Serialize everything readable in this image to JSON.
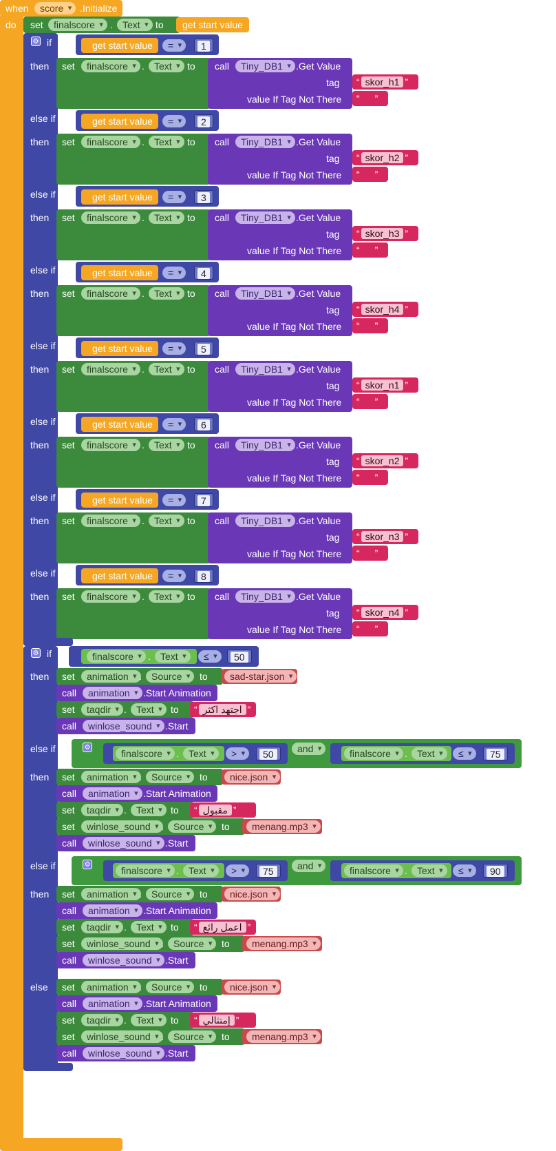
{
  "event": {
    "when": "when",
    "component": "score",
    "event": ".Initialize",
    "do": "do"
  },
  "kw": {
    "set": "set",
    "to": "to",
    "call": "call",
    "if": "if",
    "then": "then",
    "else_if": "else if",
    "else": "else",
    "dot": ".",
    "and": "and",
    "tag": "tag",
    "not_there": "value If Tag Not There",
    "get_value": ".Get Value",
    "start_anim": ".Start Animation",
    "start": ".Start"
  },
  "top_set": {
    "component": "finalscore",
    "property": "Text",
    "value": "get start value"
  },
  "first_if_rows": [
    {
      "label": "if",
      "var": "get start value",
      "op": "=",
      "num": "1",
      "db": "Tiny_DB1",
      "tag": "skor_h1"
    },
    {
      "label": "else if",
      "var": "get start value",
      "op": "=",
      "num": "2",
      "db": "Tiny_DB1",
      "tag": "skor_h2"
    },
    {
      "label": "else if",
      "var": "get start value",
      "op": "=",
      "num": "3",
      "db": "Tiny_DB1",
      "tag": "skor_h3"
    },
    {
      "label": "else if",
      "var": "get start value",
      "op": "=",
      "num": "4",
      "db": "Tiny_DB1",
      "tag": "skor_h4"
    },
    {
      "label": "else if",
      "var": "get start value",
      "op": "=",
      "num": "5",
      "db": "Tiny_DB1",
      "tag": "skor_n1"
    },
    {
      "label": "else if",
      "var": "get start value",
      "op": "=",
      "num": "6",
      "db": "Tiny_DB1",
      "tag": "skor_n2"
    },
    {
      "label": "else if",
      "var": "get start value",
      "op": "=",
      "num": "7",
      "db": "Tiny_DB1",
      "tag": "skor_n3"
    },
    {
      "label": "else if",
      "var": "get start value",
      "op": "=",
      "num": "8",
      "db": "Tiny_DB1",
      "tag": "skor_n4"
    }
  ],
  "cond2": {
    "if": {
      "component": "finalscore",
      "property": "Text",
      "op": "≤",
      "num": "50"
    },
    "elseif1": {
      "a_comp": "finalscore",
      "a_prop": "Text",
      "a_op": ">",
      "a_num": "50",
      "b_comp": "finalscore",
      "b_prop": "Text",
      "b_op": "≤",
      "b_num": "75"
    },
    "elseif2": {
      "a_comp": "finalscore",
      "a_prop": "Text",
      "a_op": ">",
      "a_num": "75",
      "b_comp": "finalscore",
      "b_prop": "Text",
      "b_op": "≤",
      "b_num": "90"
    }
  },
  "branches": [
    {
      "anim_src": "sad-star.json",
      "taqdir": "اجتهد اكثر",
      "sound_src": ""
    },
    {
      "anim_src": "nice.json",
      "taqdir": "مقبول",
      "sound_src": "menang.mp3"
    },
    {
      "anim_src": "nice.json",
      "taqdir": "اعمل رائع",
      "sound_src": "menang.mp3"
    },
    {
      "anim_src": "nice.json",
      "taqdir": "إمتثالي",
      "sound_src": "menang.mp3"
    }
  ],
  "names": {
    "animation": "animation",
    "source": "Source",
    "taqdir": "taqdir",
    "text": "Text",
    "winlose": "winlose_sound"
  },
  "colors": {
    "event": "#f5a623",
    "set": "#3c8a3c",
    "control": "#3f48a5",
    "call": "#6a38b7",
    "text": "#d7275f"
  }
}
